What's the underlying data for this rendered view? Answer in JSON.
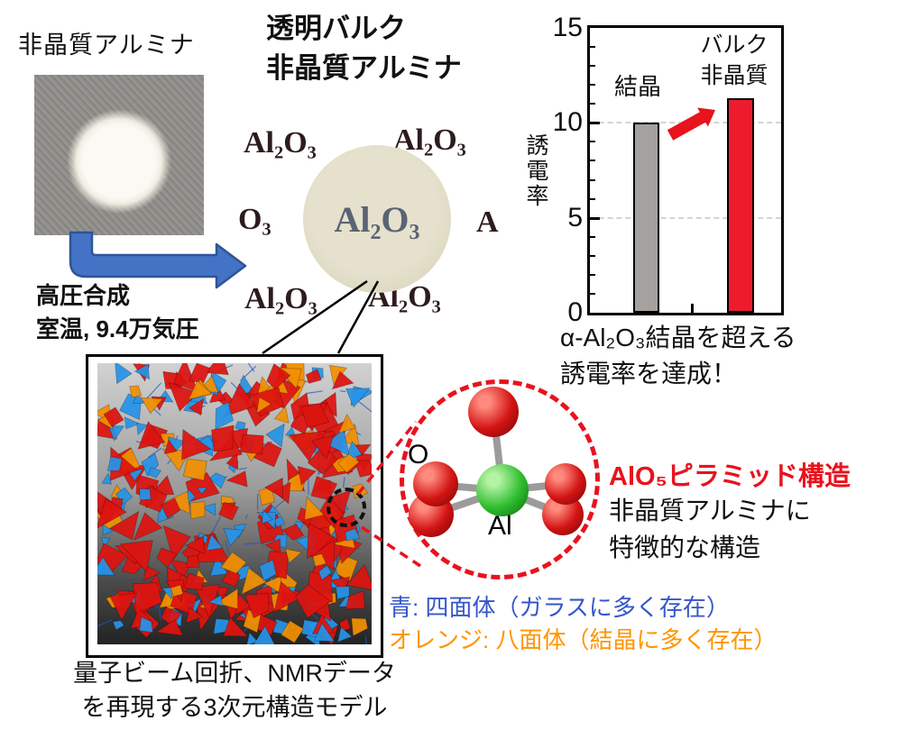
{
  "colors": {
    "accent_red": "#e8131d",
    "bar_gray": "#a5a19e",
    "bar_red": "#ee1b2d",
    "legend_blue": "#3656c8",
    "legend_orange": "#ff9500",
    "arrow_blue_fill": "#4472c4",
    "arrow_blue_edge": "#2e5597",
    "model_red": "#dd1410",
    "model_blue": "#2694e8",
    "model_orange": "#f29000",
    "bond_gray": "#9b9b9b"
  },
  "top_left": {
    "label": "非晶質アルミナ",
    "process_line1": "高圧合成",
    "process_line2": "室温, 9.4万気圧"
  },
  "bulk": {
    "title_line1": "透明バルク",
    "title_line2": "非晶質アルミナ",
    "formula_top_left": "Al₂O₃",
    "formula_top_right": "Al₂O₃",
    "formula_mid_left": "O₃",
    "formula_mid_right": "A",
    "formula_bottom_left": "Al₂O₃",
    "formula_bottom_right": "Al₂O₃",
    "formula_on_disc": "Al₂O₃"
  },
  "chart_data": {
    "type": "bar",
    "categories": [
      "結晶",
      "バルク非晶質"
    ],
    "category_labels": [
      "結晶",
      "バルク\n非晶質"
    ],
    "values": [
      10,
      11.3
    ],
    "ylabel": "誘電率",
    "ylim": [
      0,
      15
    ],
    "yticks": [
      0,
      5,
      10,
      15
    ],
    "gridlines": [
      5,
      10
    ],
    "bar_colors": [
      "#a5a19e",
      "#ee1b2d"
    ],
    "annotation": "red arrow pointing from crystal bar up to bulk amorphous bar"
  },
  "chart_note": {
    "line1": "α-Al₂O₃結晶を超える",
    "line2": "誘電率を達成！"
  },
  "molecule": {
    "o_label": "O",
    "al_label": "Al",
    "title": "AlO₅ピラミッド構造",
    "desc_line1": "非晶質アルミナに",
    "desc_line2": "特徴的な構造"
  },
  "legend": {
    "blue": "青: 四面体（ガラスに多く存在）",
    "orange": "オレンジ: 八面体（結晶に多く存在）"
  },
  "model": {
    "caption_line1": "量子ビーム回折、NMRデータ",
    "caption_line2": "を再現する3次元構造モデル"
  }
}
